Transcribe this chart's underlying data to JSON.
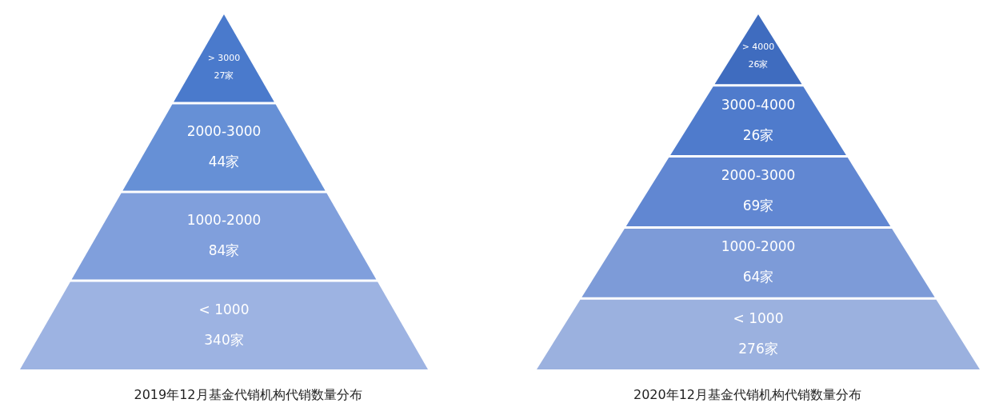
{
  "chart_data": [
    {
      "type": "other",
      "title": "2019年12月基金代销机构代销数量分布",
      "categories": [
        "> 3000",
        "2000-3000",
        "1000-2000",
        "< 1000"
      ],
      "values": [
        27,
        44,
        84,
        340
      ],
      "value_labels": [
        "27家",
        "44家",
        "84家",
        "340家"
      ],
      "colors": [
        "#4a7acc",
        "#6690d6",
        "#809fdc",
        "#9db3e2"
      ]
    },
    {
      "type": "other",
      "title": "2020年12月基金代销机构代销数量分布",
      "categories": [
        "> 4000",
        "3000-4000",
        "2000-3000",
        "1000-2000",
        "< 1000"
      ],
      "values": [
        26,
        26,
        69,
        64,
        276
      ],
      "value_labels": [
        "26家",
        "26家",
        "69家",
        "64家",
        "276家"
      ],
      "colors": [
        "#3f6cbf",
        "#4f7bcc",
        "#6187d2",
        "#7d9bd8",
        "#9bb1df"
      ]
    }
  ]
}
